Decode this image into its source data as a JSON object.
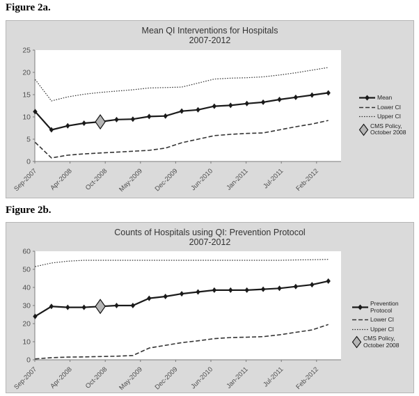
{
  "figures": {
    "figure_a_label": "Figure 2a.",
    "figure_b_label": "Figure 2b."
  },
  "colors": {
    "panel_bg": "#dadada",
    "plot_bg": "#ffffff",
    "line": "#1a1a1a",
    "ci_line": "#333333",
    "axis": "#7a7a7a",
    "tick_text": "#4d4d4d",
    "title_text": "#333333",
    "annotation_fill": "#b5b5b5",
    "annotation_stroke": "#111111"
  },
  "chart_data": [
    {
      "type": "line",
      "title_line1": "Mean QI Interventions for Hospitals",
      "title_line2": "2007-2012",
      "x_tick_labels": [
        "Sep-2007",
        "Apr-2008",
        "Oct-2008",
        "May-2009",
        "Dec-2009",
        "Jun-2010",
        "Jan-2011",
        "Jul-2011",
        "Feb-2012"
      ],
      "ylim": [
        0,
        25
      ],
      "y_ticks": [
        0,
        5,
        10,
        15,
        20,
        25
      ],
      "grid": "off",
      "legend_position": "right",
      "series": [
        {
          "name": "Mean",
          "style": "solid",
          "marker": true,
          "values": [
            11.2,
            7.1,
            8.0,
            8.6,
            8.9,
            9.4,
            9.5,
            10.1,
            10.2,
            11.3,
            11.6,
            12.4,
            12.6,
            13.0,
            13.3,
            13.9,
            14.4,
            14.9,
            15.4
          ]
        },
        {
          "name": "Lower CI",
          "style": "dashed",
          "marker": false,
          "values": [
            4.3,
            0.8,
            1.4,
            1.7,
            1.9,
            2.1,
            2.3,
            2.5,
            3.0,
            4.2,
            5.0,
            5.8,
            6.1,
            6.3,
            6.4,
            7.1,
            7.8,
            8.4,
            9.2
          ]
        },
        {
          "name": "Upper CI",
          "style": "dotted",
          "marker": false,
          "values": [
            18.4,
            13.6,
            14.5,
            15.1,
            15.5,
            15.8,
            16.1,
            16.5,
            16.6,
            16.7,
            17.6,
            18.5,
            18.7,
            18.8,
            19.0,
            19.4,
            19.9,
            20.5,
            21.1
          ]
        }
      ],
      "annotation": {
        "label": "CMS Policy,\nOctober 2008",
        "series": "Mean",
        "point_index": 4,
        "x_label": "Oct-2008",
        "value": 8.9
      },
      "legend": [
        {
          "label": "Mean",
          "style": "solid"
        },
        {
          "label": "Lower CI",
          "style": "dashed"
        },
        {
          "label": "Upper CI",
          "style": "dotted"
        },
        {
          "label": "CMS Policy,\nOctober 2008",
          "style": "big-diamond"
        }
      ]
    },
    {
      "type": "line",
      "title_line1": "Counts of Hospitals using QI: Prevention Protocol",
      "title_line2": "2007-2012",
      "x_tick_labels": [
        "Sep-2007",
        "Apr-2008",
        "Oct-2008",
        "May-2009",
        "Dec-2009",
        "Jun-2010",
        "Jan-2011",
        "Jul-2011",
        "Feb-2012"
      ],
      "ylim": [
        0,
        60
      ],
      "y_ticks": [
        0,
        10,
        20,
        30,
        40,
        50,
        60
      ],
      "grid": "off",
      "legend_position": "right",
      "series": [
        {
          "name": "Prevention Protocol",
          "style": "solid",
          "marker": true,
          "values": [
            24,
            29.5,
            29,
            29,
            29.5,
            30,
            30,
            34,
            35,
            36.5,
            37.5,
            38.5,
            38.5,
            38.5,
            39,
            39.5,
            40.5,
            41.5,
            43.5
          ]
        },
        {
          "name": "Lower CI",
          "style": "dashed",
          "marker": false,
          "values": [
            0.5,
            1.2,
            1.5,
            1.6,
            1.8,
            2.0,
            2.4,
            6.5,
            8.0,
            9.5,
            10.5,
            11.7,
            12.3,
            12.5,
            12.8,
            13.8,
            15.2,
            16.5,
            19.5
          ]
        },
        {
          "name": "Upper CI",
          "style": "dotted",
          "marker": false,
          "values": [
            51.5,
            53.5,
            54.5,
            55,
            55,
            55,
            55,
            55,
            55,
            55,
            55,
            55,
            55,
            55,
            55,
            55,
            55.2,
            55.3,
            55.5
          ]
        }
      ],
      "annotation": {
        "label": "CMS Policy,\nOctober 2008",
        "series": "Prevention Protocol",
        "point_index": 4,
        "x_label": "Oct-2008",
        "value": 29.5
      },
      "legend": [
        {
          "label": "Prevention Protocol",
          "style": "solid"
        },
        {
          "label": "Lower CI",
          "style": "dashed"
        },
        {
          "label": "Upper CI",
          "style": "dotted"
        },
        {
          "label": "CMS Policy,\nOctober 2008",
          "style": "big-diamond"
        }
      ]
    }
  ]
}
